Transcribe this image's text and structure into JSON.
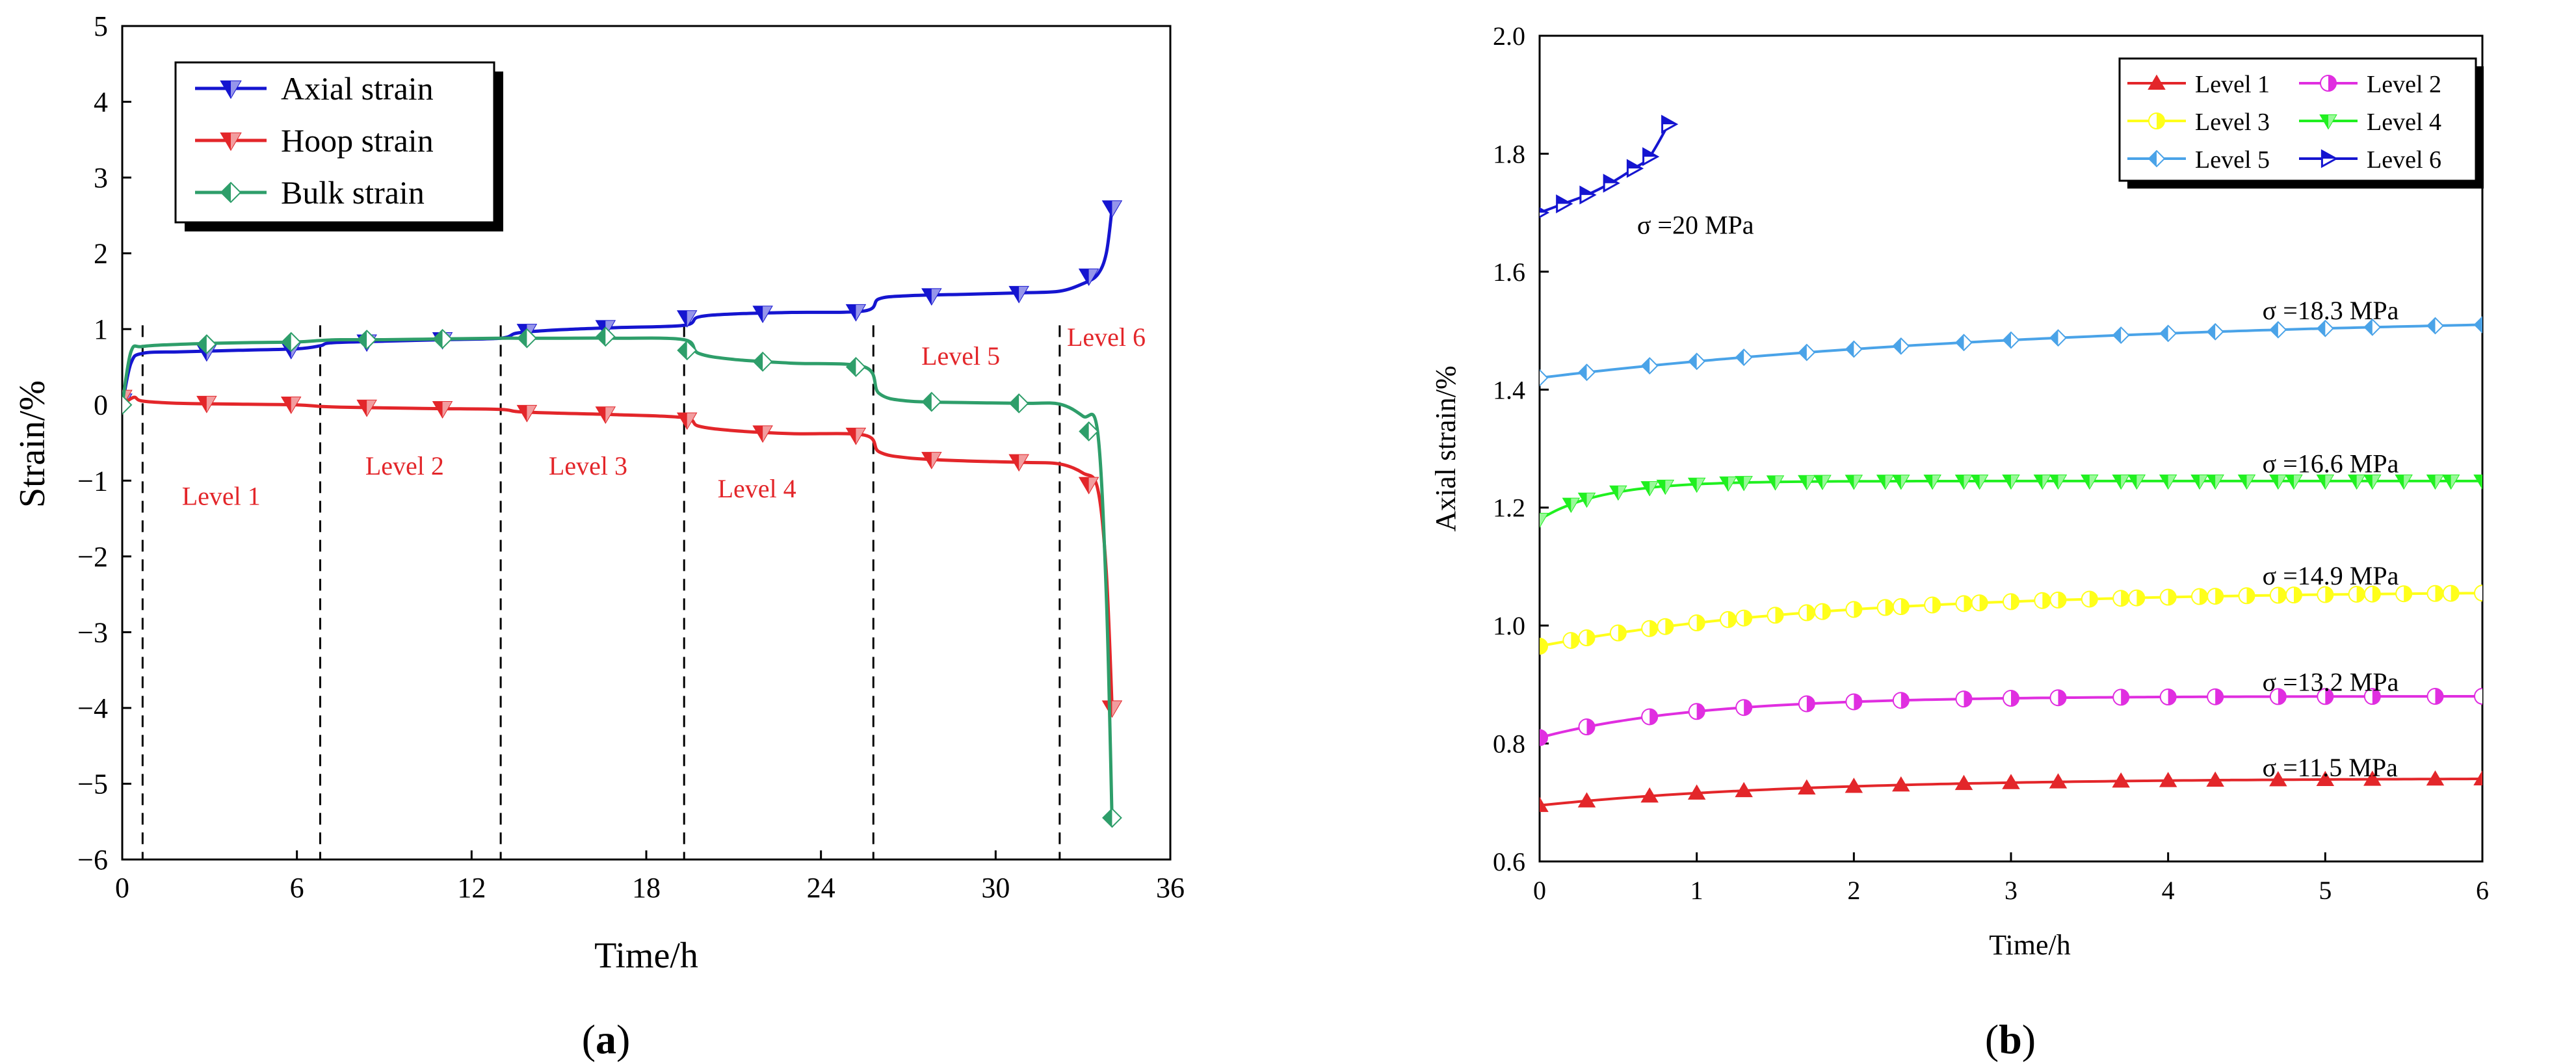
{
  "chart_data": [
    {
      "panel_label": "(a)",
      "panel_letter": "a",
      "type": "line",
      "title": "",
      "xlabel": "Time/h",
      "ylabel": "Strain/%",
      "xlim": [
        0,
        36
      ],
      "ylim": [
        -6,
        5
      ],
      "xticks": [
        "0",
        "6",
        "12",
        "18",
        "24",
        "30",
        "36"
      ],
      "yticks": [
        "5",
        "4",
        "3",
        "2",
        "1",
        "0",
        "−1",
        "−2",
        "−3",
        "−4",
        "−5",
        "−6"
      ],
      "legend": "top-left",
      "level_boundaries_h": [
        0.7,
        6.8,
        13.0,
        19.3,
        25.8,
        32.2
      ],
      "level_labels": [
        {
          "text": "Level 1",
          "x": 3.4,
          "y": -1.2
        },
        {
          "text": "Level 2",
          "x": 9.7,
          "y": -0.8
        },
        {
          "text": "Level 3",
          "x": 16.0,
          "y": -0.8
        },
        {
          "text": "Level 4",
          "x": 21.8,
          "y": -1.1
        },
        {
          "text": "Level 5",
          "x": 28.8,
          "y": 0.65
        },
        {
          "text": "Level 6",
          "x": 33.8,
          "y": 0.9
        }
      ],
      "series": [
        {
          "name": "Axial strain",
          "color": "#1515d0",
          "marker": "triangle-down",
          "x": [
            0,
            0.3,
            0.7,
            2,
            4,
            6,
            6.8,
            7.2,
            9,
            11,
            13,
            13.6,
            15,
            17,
            19.3,
            19.8,
            21,
            23,
            25.5,
            26,
            27,
            29,
            31,
            32.2,
            33,
            33.5,
            33.8,
            34
          ],
          "y": [
            0,
            0.55,
            0.68,
            0.7,
            0.72,
            0.74,
            0.78,
            0.82,
            0.84,
            0.86,
            0.88,
            0.95,
            0.99,
            1.02,
            1.05,
            1.16,
            1.2,
            1.22,
            1.24,
            1.4,
            1.44,
            1.46,
            1.48,
            1.5,
            1.6,
            1.72,
            2.0,
            2.6
          ],
          "markers_x": [
            0,
            2.9,
            5.8,
            8.4,
            11,
            13.9,
            16.6,
            19.4,
            22,
            25.2,
            27.8,
            30.8,
            33.2,
            34
          ],
          "markers_y": [
            0.05,
            0.7,
            0.73,
            0.83,
            0.86,
            0.97,
            1.02,
            1.15,
            1.21,
            1.23,
            1.44,
            1.47,
            1.7,
            2.6
          ]
        },
        {
          "name": "Hoop strain",
          "color": "#e3262a",
          "marker": "triangle-down",
          "x": [
            0,
            0.4,
            0.7,
            2,
            4,
            6,
            6.8,
            7.5,
            9,
            11,
            13,
            13.6,
            15,
            17,
            19.3,
            19.8,
            21,
            23,
            25.5,
            26,
            27,
            29,
            31,
            32.2,
            33,
            33.5,
            33.8,
            34
          ],
          "y": [
            0,
            0.1,
            0.05,
            0.02,
            0.01,
            0,
            -0.02,
            -0.03,
            -0.04,
            -0.05,
            -0.06,
            -0.09,
            -0.11,
            -0.13,
            -0.17,
            -0.28,
            -0.34,
            -0.38,
            -0.4,
            -0.62,
            -0.7,
            -0.74,
            -0.76,
            -0.78,
            -0.9,
            -1.1,
            -2.2,
            -4.0
          ],
          "markers_x": [
            0,
            2.9,
            5.8,
            8.4,
            11,
            13.9,
            16.6,
            19.4,
            22,
            25.2,
            27.8,
            30.8,
            33.2,
            34
          ],
          "markers_y": [
            0.1,
            0.02,
            0.01,
            -0.03,
            -0.05,
            -0.1,
            -0.12,
            -0.2,
            -0.37,
            -0.4,
            -0.72,
            -0.75,
            -1.05,
            -4.0
          ]
        },
        {
          "name": "Bulk strain",
          "color": "#2e9e6a",
          "marker": "diamond-half",
          "x": [
            0,
            0.3,
            0.7,
            2,
            4,
            6,
            6.8,
            7.5,
            9,
            11,
            13,
            13.6,
            15,
            17,
            19.3,
            19.8,
            21,
            23,
            25.5,
            26,
            27,
            29,
            31,
            32.2,
            33,
            33.5,
            33.8,
            34
          ],
          "y": [
            0,
            0.7,
            0.77,
            0.8,
            0.82,
            0.83,
            0.85,
            0.86,
            0.86,
            0.87,
            0.88,
            0.88,
            0.88,
            0.88,
            0.86,
            0.68,
            0.6,
            0.55,
            0.5,
            0.15,
            0.05,
            0.03,
            0.02,
            0.01,
            -0.15,
            -0.35,
            -2.5,
            -5.5
          ],
          "markers_x": [
            0,
            2.9,
            5.8,
            8.4,
            11,
            13.9,
            16.6,
            19.4,
            22,
            25.2,
            27.8,
            30.8,
            33.2,
            34
          ],
          "markers_y": [
            0,
            0.8,
            0.83,
            0.86,
            0.87,
            0.88,
            0.9,
            0.72,
            0.57,
            0.5,
            0.04,
            0.02,
            -0.35,
            -5.45
          ]
        }
      ]
    },
    {
      "panel_label": "(b)",
      "panel_letter": "b",
      "type": "line",
      "title": "",
      "xlabel": "Time/h",
      "ylabel": "Axial strain/%",
      "xlim": [
        0,
        6
      ],
      "ylim": [
        0.6,
        2.0
      ],
      "xticks": [
        "0",
        "1",
        "2",
        "3",
        "4",
        "5",
        "6"
      ],
      "yticks": [
        "2.0",
        "1.8",
        "1.6",
        "1.4",
        "1.2",
        "1.0",
        "0.8",
        "0.6"
      ],
      "legend": "top-right",
      "stress_labels": [
        {
          "text": "σ =20 MPa",
          "x": 0.62,
          "y": 1.68
        },
        {
          "text": "σ =18.3 MPa",
          "x": 4.6,
          "y": 1.535
        },
        {
          "text": "σ =16.6 MPa",
          "x": 4.6,
          "y": 1.275
        },
        {
          "text": "σ =14.9 MPa",
          "x": 4.6,
          "y": 1.085
        },
        {
          "text": "σ =13.2 MPa",
          "x": 4.6,
          "y": 0.905
        },
        {
          "text": "σ =11.5 MPa",
          "x": 4.6,
          "y": 0.76
        }
      ],
      "series": [
        {
          "name": "Level 1",
          "color": "#e3262a",
          "marker": "triangle-up",
          "x_end": 6,
          "y_start": 0.695,
          "y_end": 0.74,
          "rise_rate": 0.6,
          "n_markers": 19
        },
        {
          "name": "Level 2",
          "color": "#e02ee0",
          "marker": "circle-half",
          "x_end": 6,
          "y_start": 0.81,
          "y_end": 0.88,
          "rise_rate": 1.0,
          "n_markers": 19
        },
        {
          "name": "Level 3",
          "color": "#ffff1a",
          "marker": "circle-half",
          "x_end": 6,
          "y_start": 0.965,
          "y_end": 1.055,
          "rise_rate": 0.55,
          "n_markers": 37
        },
        {
          "name": "Level 4",
          "color": "#20f020",
          "marker": "triangle-down",
          "x_end": 6,
          "y_start": 1.18,
          "y_end": 1.245,
          "rise_rate": 2.5,
          "n_markers": 37
        },
        {
          "name": "Level 5",
          "color": "#4aa3e8",
          "marker": "diamond-half",
          "x_end": 6,
          "y_start": 1.42,
          "y_end": 1.51,
          "rise_rate": 0.3,
          "n_markers": 19
        },
        {
          "name": "Level 6",
          "color": "#1515d0",
          "marker": "triangle-right",
          "x_end": 0.82,
          "y_start": 1.7,
          "y_end": 1.85,
          "rise_rate": 0.0,
          "n_markers": 7,
          "x": [
            0,
            0.15,
            0.3,
            0.45,
            0.6,
            0.7,
            0.82
          ],
          "y": [
            1.7,
            1.715,
            1.73,
            1.75,
            1.775,
            1.795,
            1.85
          ]
        }
      ]
    }
  ]
}
